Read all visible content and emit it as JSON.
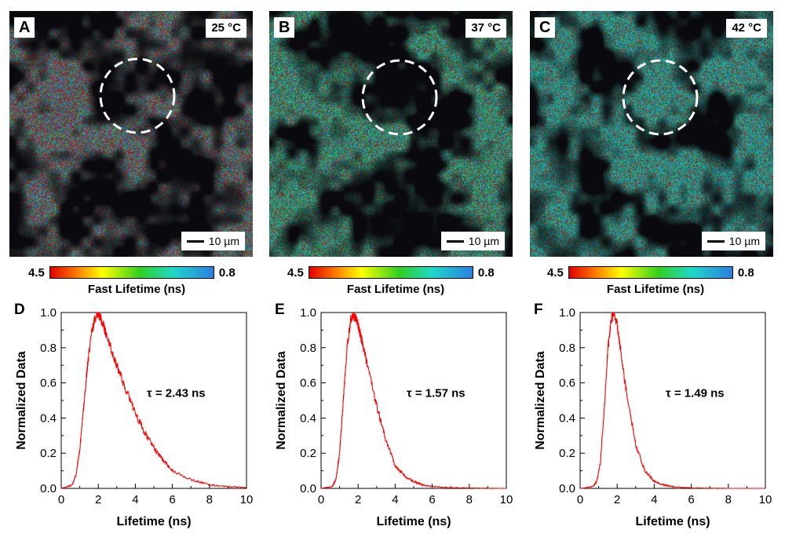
{
  "panels": [
    {
      "letter": "A",
      "temperature": "25 °C",
      "scale_bar": "10 µm"
    },
    {
      "letter": "B",
      "temperature": "37 °C",
      "scale_bar": "10 µm"
    },
    {
      "letter": "C",
      "temperature": "42 °C",
      "scale_bar": "10 µm"
    }
  ],
  "colorbar": {
    "min_label": "4.5",
    "max_label": "0.8",
    "label": "Fast Lifetime (ns)",
    "colors": [
      "#e00000",
      "#ff7a00",
      "#ffff00",
      "#30d020",
      "#20d8c8",
      "#2a7fe0"
    ]
  },
  "chart_data": [
    {
      "letter": "D",
      "type": "line",
      "xlabel": "Lifetime (ns)",
      "ylabel": "Normalized Data",
      "xlim": [
        0,
        10
      ],
      "ylim": [
        0,
        1.0
      ],
      "xticks": [
        0,
        2,
        4,
        6,
        8,
        10
      ],
      "yticks": [
        0.0,
        0.2,
        0.4,
        0.6,
        0.8,
        1.0
      ],
      "annotation": "τ = 2.43 ns",
      "color": "#ff0000",
      "x": [
        0,
        0.6,
        0.8,
        1.0,
        1.2,
        1.4,
        1.6,
        1.8,
        2.0,
        2.2,
        2.5,
        3.0,
        3.5,
        4.0,
        4.5,
        5.0,
        5.5,
        6.0,
        7.0,
        8.0,
        9.0,
        10.0
      ],
      "y": [
        0.0,
        0.02,
        0.08,
        0.22,
        0.45,
        0.68,
        0.86,
        0.96,
        0.99,
        0.95,
        0.85,
        0.7,
        0.56,
        0.43,
        0.32,
        0.23,
        0.16,
        0.1,
        0.05,
        0.02,
        0.01,
        0.005
      ]
    },
    {
      "letter": "E",
      "type": "line",
      "xlabel": "Lifetime (ns)",
      "ylabel": "Normalized Data",
      "xlim": [
        0,
        10
      ],
      "ylim": [
        0,
        1.0
      ],
      "xticks": [
        0,
        2,
        4,
        6,
        8,
        10
      ],
      "yticks": [
        0.0,
        0.2,
        0.4,
        0.6,
        0.8,
        1.0
      ],
      "annotation": "τ = 1.57 ns",
      "color": "#ff0000",
      "x": [
        0,
        0.6,
        0.8,
        1.0,
        1.2,
        1.4,
        1.6,
        1.8,
        2.0,
        2.2,
        2.5,
        3.0,
        3.5,
        4.0,
        4.5,
        5.0,
        5.5,
        6.0,
        7.0,
        8.0,
        10.0
      ],
      "y": [
        0.0,
        0.01,
        0.05,
        0.2,
        0.5,
        0.8,
        0.96,
        0.98,
        0.93,
        0.84,
        0.7,
        0.47,
        0.27,
        0.13,
        0.07,
        0.04,
        0.02,
        0.01,
        0.004,
        0.002,
        0.0
      ]
    },
    {
      "letter": "F",
      "type": "line",
      "xlabel": "Lifetime (ns)",
      "ylabel": "Normalized Data",
      "xlim": [
        0,
        10
      ],
      "ylim": [
        0,
        1.0
      ],
      "xticks": [
        0,
        2,
        4,
        6,
        8,
        10
      ],
      "yticks": [
        0.0,
        0.2,
        0.4,
        0.6,
        0.8,
        1.0
      ],
      "annotation": "τ = 1.49 ns",
      "color": "#ff0000",
      "x": [
        0,
        0.7,
        0.9,
        1.1,
        1.3,
        1.5,
        1.7,
        1.8,
        2.0,
        2.2,
        2.5,
        3.0,
        3.5,
        4.0,
        4.5,
        5.0,
        6.0,
        8.0,
        10.0
      ],
      "y": [
        0.0,
        0.01,
        0.04,
        0.15,
        0.45,
        0.8,
        0.97,
        0.99,
        0.93,
        0.78,
        0.55,
        0.25,
        0.1,
        0.04,
        0.02,
        0.01,
        0.003,
        0.0,
        0.0
      ]
    }
  ]
}
